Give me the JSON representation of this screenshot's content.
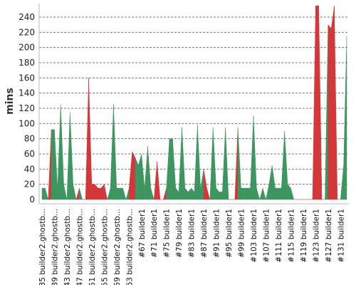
{
  "chart_data": {
    "type": "area",
    "title": "",
    "xlabel": "",
    "ylabel": "mins",
    "ylim": [
      0,
      255
    ],
    "yticks": [
      0,
      20,
      40,
      60,
      80,
      100,
      120,
      140,
      160,
      180,
      200,
      220,
      240
    ],
    "grid": true,
    "x_tick_labels": [
      "#35 builder2.ghostb...",
      "#39 builder2.ghostb...",
      "#43 builder2.ghostb...",
      "#47 builder2.ghostb...",
      "#51 builder2.ghostb...",
      "#55 builder2.ghostb...",
      "#59 builder2.ghostb...",
      "#63 builder2.ghostb...",
      "#67 builder1",
      "#71 builder1",
      "#75 builder1",
      "#79 builder1",
      "#83 builder1",
      "#87 builder1",
      "#91 builder1",
      "#95 builder1",
      "#99 builder1",
      "#103 builder1",
      "#107 builder1",
      "#111 builder1",
      "#115 builder1",
      "#119 builder1",
      "#123 builder1",
      "#127 builder1",
      "#131 builder1"
    ],
    "builds": [
      35,
      36,
      37,
      38,
      39,
      40,
      41,
      42,
      43,
      44,
      45,
      46,
      47,
      48,
      49,
      50,
      51,
      52,
      53,
      54,
      55,
      56,
      57,
      58,
      59,
      60,
      61,
      62,
      63,
      64,
      65,
      66,
      67,
      68,
      69,
      70,
      71,
      72,
      73,
      74,
      75,
      76,
      77,
      78,
      79,
      80,
      81,
      82,
      83,
      84,
      85,
      86,
      87,
      88,
      89,
      90,
      91,
      92,
      93,
      94,
      95,
      96,
      97,
      98,
      99,
      100,
      101,
      102,
      103,
      104,
      105,
      106,
      107,
      108,
      109,
      110,
      111,
      112,
      113,
      114,
      115,
      116,
      117,
      118,
      119,
      120,
      121,
      122,
      123,
      124,
      125,
      126,
      127,
      128,
      129,
      130,
      131,
      132,
      133
    ],
    "values": [
      15,
      15,
      0,
      92,
      92,
      15,
      125,
      20,
      0,
      115,
      20,
      0,
      15,
      0,
      0,
      160,
      20,
      20,
      15,
      15,
      20,
      0,
      15,
      125,
      15,
      15,
      15,
      0,
      15,
      63,
      55,
      45,
      60,
      15,
      70,
      15,
      0,
      50,
      0,
      0,
      15,
      80,
      80,
      15,
      10,
      95,
      15,
      10,
      15,
      10,
      98,
      15,
      40,
      15,
      0,
      95,
      15,
      10,
      10,
      95,
      0,
      0,
      0,
      95,
      15,
      15,
      15,
      15,
      110,
      15,
      0,
      15,
      0,
      20,
      45,
      15,
      15,
      15,
      90,
      20,
      15,
      0,
      0,
      0,
      0,
      0,
      0,
      0,
      255,
      255,
      0,
      0,
      230,
      225,
      255,
      0,
      0,
      45,
      215
    ],
    "status": [
      "success",
      "success",
      "failure",
      "success",
      "success",
      "success",
      "success",
      "success",
      "success",
      "success",
      "success",
      "failure",
      "success",
      "failure",
      "failure",
      "failure",
      "failure",
      "failure",
      "failure",
      "failure",
      "failure",
      "success",
      "success",
      "success",
      "success",
      "success",
      "success",
      "success",
      "failure",
      "failure",
      "success",
      "success",
      "success",
      "success",
      "success",
      "success",
      "failure",
      "failure",
      "failure",
      "failure",
      "success",
      "success",
      "success",
      "success",
      "success",
      "success",
      "success",
      "success",
      "success",
      "success",
      "success",
      "success",
      "failure",
      "failure",
      "success",
      "success",
      "success",
      "success",
      "success",
      "success",
      "failure",
      "failure",
      "failure",
      "success",
      "success",
      "success",
      "success",
      "success",
      "success",
      "success",
      "success",
      "success",
      "success",
      "success",
      "success",
      "success",
      "success",
      "success",
      "success",
      "success",
      "success",
      "failure",
      "failure",
      "failure",
      "failure",
      "failure",
      "failure",
      "failure",
      "failure",
      "failure",
      "success",
      "success",
      "failure",
      "failure",
      "failure",
      "success",
      "success",
      "success",
      "failure"
    ],
    "colors": {
      "success": "#3d9660",
      "failure": "#d4373a"
    }
  }
}
